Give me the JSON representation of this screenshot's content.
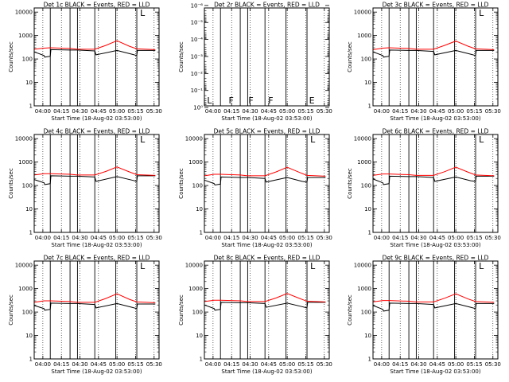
{
  "figure": {
    "x_ticks": [
      "04:00",
      "04:15",
      "04:30",
      "04:45",
      "05:00",
      "05:15",
      "05:30"
    ],
    "x_tick_minutes": [
      240,
      255,
      270,
      285,
      300,
      315,
      330
    ],
    "x_range_minutes": [
      233,
      334
    ],
    "vertical_markers_minutes": [
      246,
      262,
      268,
      282,
      299,
      316
    ],
    "legend_colors": {
      "events": "#000000",
      "lld": "#ff0000"
    }
  },
  "chart_data": [
    {
      "type": "line",
      "title": "Det 1c BLACK = Events, RED = LLD",
      "xlabel": "Start Time (18-Aug-02 03:53:00)",
      "ylabel": "Counts/sec",
      "yscale": "log",
      "ylim": [
        1,
        15000
      ],
      "yticks": [
        "1",
        "10",
        "100",
        "1000",
        "10000"
      ],
      "ytick_values": [
        1,
        10,
        100,
        1000,
        10000
      ],
      "annotations": [
        {
          "text": "L",
          "x_minute": 318
        }
      ],
      "series": [
        {
          "color": "#000000",
          "x": [
            233,
            241,
            241.5,
            246,
            246.5,
            262,
            268,
            282,
            283,
            300,
            312,
            316,
            316.5,
            331
          ],
          "y": [
            200,
            140,
            120,
            130,
            250,
            240,
            240,
            220,
            150,
            230,
            160,
            140,
            230,
            230
          ]
        },
        {
          "color": "#ff0000",
          "x": [
            233,
            241,
            246,
            262,
            268,
            282,
            291,
            300,
            310,
            316,
            331
          ],
          "y": [
            260,
            290,
            300,
            280,
            260,
            260,
            380,
            600,
            350,
            270,
            250
          ]
        }
      ]
    },
    {
      "type": "line",
      "title": "Det 2r BLACK = Events, RED = LLD",
      "xlabel": "Start Time (18-Aug-02 03:53:00)",
      "ylabel": "Counts/sec",
      "yscale": "log",
      "ylim": [
        0.8,
        1.4e-06
      ],
      "yticks": [
        "10⁻⁶",
        "10⁻⁵",
        "10⁻⁴",
        "10⁻³",
        "10⁻²",
        "10⁻¹",
        "10⁰"
      ],
      "ytick_values": [
        1e-06,
        1e-05,
        0.0001,
        0.001,
        0.01,
        0.1,
        1
      ],
      "annotations": [
        {
          "text": "L",
          "x_minute": 234.5
        },
        {
          "text": "F",
          "x_minute": 252
        },
        {
          "text": "F",
          "x_minute": 268
        },
        {
          "text": "F",
          "x_minute": 284
        },
        {
          "text": "E",
          "x_minute": 317
        }
      ],
      "series": []
    },
    {
      "type": "line",
      "title": "Det 3c BLACK = Events, RED = LLD",
      "xlabel": "Start Time (18-Aug-02 03:53:00)",
      "ylabel": "Counts/sec",
      "yscale": "log",
      "ylim": [
        1,
        15000
      ],
      "yticks": [
        "1",
        "10",
        "100",
        "1000",
        "10000"
      ],
      "ytick_values": [
        1,
        10,
        100,
        1000,
        10000
      ],
      "annotations": [
        {
          "text": "L",
          "x_minute": 318
        }
      ],
      "series": [
        {
          "color": "#000000",
          "x": [
            233,
            241,
            241.5,
            246,
            246.5,
            262,
            268,
            282,
            283,
            300,
            312,
            316,
            316.5,
            331
          ],
          "y": [
            200,
            140,
            120,
            130,
            240,
            230,
            230,
            210,
            150,
            230,
            160,
            140,
            230,
            230
          ]
        },
        {
          "color": "#ff0000",
          "x": [
            233,
            241,
            246,
            262,
            268,
            282,
            291,
            300,
            310,
            316,
            331
          ],
          "y": [
            250,
            290,
            300,
            280,
            260,
            260,
            380,
            580,
            350,
            270,
            250
          ]
        }
      ]
    },
    {
      "type": "line",
      "title": "Det 4c BLACK = Events, RED = LLD",
      "xlabel": "Start Time (18-Aug-02 03:53:00)",
      "ylabel": "Counts/sec",
      "yscale": "log",
      "ylim": [
        1,
        15000
      ],
      "yticks": [
        "1",
        "10",
        "100",
        "1000",
        "10000"
      ],
      "ytick_values": [
        1,
        10,
        100,
        1000,
        10000
      ],
      "annotations": [
        {
          "text": "L",
          "x_minute": 318
        }
      ],
      "series": [
        {
          "color": "#000000",
          "x": [
            233,
            241,
            241.5,
            246,
            246.5,
            262,
            268,
            282,
            283,
            300,
            312,
            316,
            316.5,
            331
          ],
          "y": [
            180,
            130,
            110,
            120,
            260,
            250,
            250,
            230,
            150,
            240,
            170,
            150,
            260,
            260
          ]
        },
        {
          "color": "#ff0000",
          "x": [
            233,
            241,
            246,
            262,
            268,
            282,
            291,
            300,
            310,
            316,
            331
          ],
          "y": [
            280,
            320,
            320,
            300,
            280,
            280,
            400,
            620,
            380,
            290,
            270
          ]
        }
      ]
    },
    {
      "type": "line",
      "title": "Det 5c BLACK = Events, RED = LLD",
      "xlabel": "Start Time (18-Aug-02 03:53:00)",
      "ylabel": "Counts/sec",
      "yscale": "log",
      "ylim": [
        1,
        15000
      ],
      "yticks": [
        "1",
        "10",
        "100",
        "1000",
        "10000"
      ],
      "ytick_values": [
        1,
        10,
        100,
        1000,
        10000
      ],
      "annotations": [
        {
          "text": "L",
          "x_minute": 318
        }
      ],
      "series": [
        {
          "color": "#000000",
          "x": [
            233,
            241,
            241.5,
            246,
            246.5,
            262,
            268,
            282,
            283,
            300,
            312,
            316,
            316.5,
            331
          ],
          "y": [
            170,
            120,
            105,
            115,
            230,
            220,
            220,
            200,
            140,
            220,
            150,
            140,
            220,
            220
          ]
        },
        {
          "color": "#ff0000",
          "x": [
            233,
            241,
            246,
            262,
            268,
            282,
            291,
            300,
            310,
            316,
            331
          ],
          "y": [
            260,
            300,
            300,
            280,
            260,
            260,
            380,
            600,
            360,
            270,
            250
          ]
        }
      ]
    },
    {
      "type": "line",
      "title": "Det 6c BLACK = Events, RED = LLD",
      "xlabel": "Start Time (18-Aug-02 03:53:00)",
      "ylabel": "Counts/sec",
      "yscale": "log",
      "ylim": [
        1,
        15000
      ],
      "yticks": [
        "1",
        "10",
        "100",
        "1000",
        "10000"
      ],
      "ytick_values": [
        1,
        10,
        100,
        1000,
        10000
      ],
      "annotations": [
        {
          "text": "L",
          "x_minute": 318
        }
      ],
      "series": [
        {
          "color": "#000000",
          "x": [
            233,
            241,
            241.5,
            246,
            246.5,
            262,
            268,
            282,
            283,
            300,
            312,
            316,
            316.5,
            331
          ],
          "y": [
            190,
            130,
            110,
            120,
            250,
            240,
            240,
            220,
            150,
            230,
            160,
            150,
            250,
            250
          ]
        },
        {
          "color": "#ff0000",
          "x": [
            233,
            241,
            246,
            262,
            268,
            282,
            291,
            300,
            310,
            316,
            331
          ],
          "y": [
            270,
            310,
            310,
            290,
            270,
            270,
            390,
            610,
            370,
            280,
            260
          ]
        }
      ]
    },
    {
      "type": "line",
      "title": "Det 7c BLACK = Events, RED = LLD",
      "xlabel": "Start Time (18-Aug-02 03:53:00)",
      "ylabel": "Counts/sec",
      "yscale": "log",
      "ylim": [
        1,
        15000
      ],
      "yticks": [
        "1",
        "10",
        "100",
        "1000",
        "10000"
      ],
      "ytick_values": [
        1,
        10,
        100,
        1000,
        10000
      ],
      "annotations": [
        {
          "text": "L",
          "x_minute": 318
        }
      ],
      "series": [
        {
          "color": "#000000",
          "x": [
            233,
            241,
            241.5,
            246,
            246.5,
            262,
            268,
            282,
            283,
            300,
            312,
            316,
            316.5,
            331
          ],
          "y": [
            190,
            140,
            120,
            130,
            240,
            230,
            230,
            210,
            150,
            230,
            160,
            140,
            220,
            220
          ]
        },
        {
          "color": "#ff0000",
          "x": [
            233,
            241,
            246,
            262,
            268,
            282,
            291,
            300,
            310,
            316,
            331
          ],
          "y": [
            260,
            300,
            300,
            280,
            260,
            260,
            380,
            600,
            350,
            270,
            250
          ]
        }
      ]
    },
    {
      "type": "line",
      "title": "Det 8c BLACK = Events, RED = LLD",
      "xlabel": "Start Time (18-Aug-02 03:53:00)",
      "ylabel": "Counts/sec",
      "yscale": "log",
      "ylim": [
        1,
        15000
      ],
      "yticks": [
        "1",
        "10",
        "100",
        "1000",
        "10000"
      ],
      "ytick_values": [
        1,
        10,
        100,
        1000,
        10000
      ],
      "annotations": [
        {
          "text": "L",
          "x_minute": 318
        }
      ],
      "series": [
        {
          "color": "#000000",
          "x": [
            233,
            241,
            241.5,
            246,
            246.5,
            262,
            268,
            282,
            283,
            300,
            312,
            316,
            316.5,
            331
          ],
          "y": [
            200,
            140,
            120,
            130,
            260,
            250,
            250,
            230,
            160,
            240,
            170,
            150,
            260,
            260
          ]
        },
        {
          "color": "#ff0000",
          "x": [
            233,
            241,
            246,
            262,
            268,
            282,
            291,
            300,
            310,
            316,
            331
          ],
          "y": [
            280,
            320,
            320,
            300,
            280,
            280,
            400,
            620,
            380,
            290,
            270
          ]
        }
      ]
    },
    {
      "type": "line",
      "title": "Det 9c BLACK = Events, RED = LLD",
      "xlabel": "Start Time (18-Aug-02 03:53:00)",
      "ylabel": "Counts/sec",
      "yscale": "log",
      "ylim": [
        1,
        15000
      ],
      "yticks": [
        "1",
        "10",
        "100",
        "1000",
        "10000"
      ],
      "ytick_values": [
        1,
        10,
        100,
        1000,
        10000
      ],
      "annotations": [
        {
          "text": "L",
          "x_minute": 318
        }
      ],
      "series": [
        {
          "color": "#000000",
          "x": [
            233,
            241,
            241.5,
            246,
            246.5,
            262,
            268,
            282,
            283,
            300,
            312,
            316,
            316.5,
            331
          ],
          "y": [
            190,
            130,
            110,
            120,
            240,
            230,
            230,
            210,
            150,
            230,
            160,
            140,
            230,
            230
          ]
        },
        {
          "color": "#ff0000",
          "x": [
            233,
            241,
            246,
            262,
            268,
            282,
            291,
            300,
            310,
            316,
            331
          ],
          "y": [
            270,
            310,
            310,
            290,
            270,
            270,
            390,
            600,
            360,
            280,
            260
          ]
        }
      ]
    }
  ]
}
